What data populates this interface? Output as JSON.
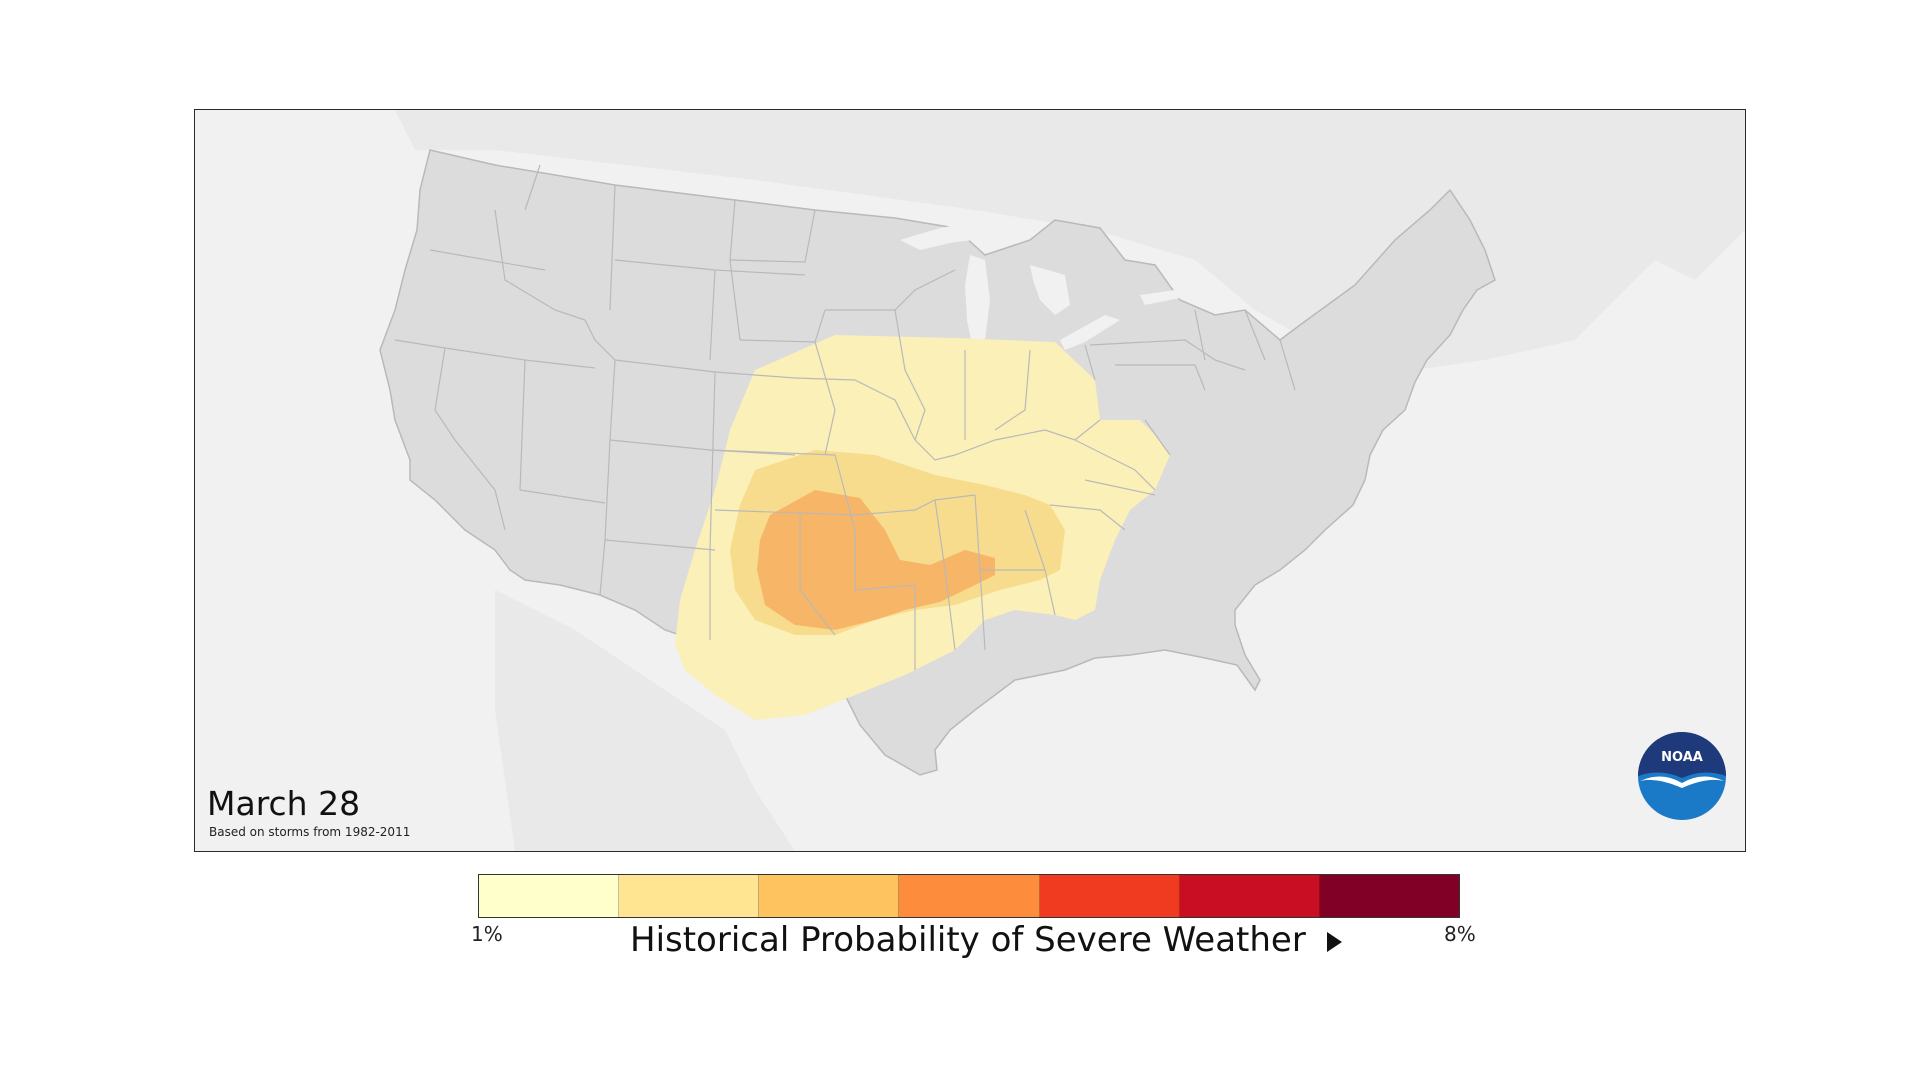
{
  "map": {
    "date_label": "March 28",
    "based_on_note": "Based on storms from 1982-2011",
    "logo_text": "NOAA",
    "logo_icon": "noaa-seagull-logo-icon",
    "land_color": "#dcdcdc",
    "water_color": "#f1f1f1",
    "border_color": "#b9b9b9"
  },
  "legend": {
    "title": "Historical Probability of Severe Weather",
    "min_label": "1%",
    "max_label": "8%",
    "arrow_icon": "right-triangle-icon",
    "colors": [
      "#ffffcc",
      "#ffe591",
      "#fec35e",
      "#fd8d3c",
      "#f03b20",
      "#c90e24",
      "#800026"
    ]
  },
  "probability_zones": [
    {
      "level": "1%",
      "color": "#fbf0b8"
    },
    {
      "level": "2%",
      "color": "#f8dc8e"
    },
    {
      "level": "3%",
      "color": "#f6b567"
    }
  ]
}
